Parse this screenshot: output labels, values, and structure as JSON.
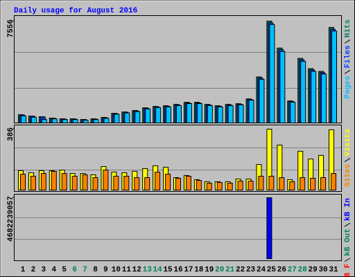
{
  "chart_data": [
    {
      "type": "bar",
      "title": "Daily usage for August 2016",
      "ylim": [
        0,
        7556
      ],
      "yticks": [
        7556
      ],
      "series": [
        {
          "name": "Hits",
          "color": "#00805c",
          "values": [
            612,
            510,
            460,
            357,
            306,
            306,
            255,
            306,
            408,
            714,
            816,
            918,
            1122,
            1224,
            1275,
            1377,
            1530,
            1530,
            1377,
            1275,
            1377,
            1428,
            1785,
            3417,
            7556,
            5559,
            1632,
            4794,
            4029,
            3825,
            7089
          ]
        },
        {
          "name": "Files",
          "color": "#0040ff",
          "values": [
            590,
            490,
            440,
            340,
            290,
            290,
            240,
            290,
            390,
            690,
            790,
            890,
            1090,
            1190,
            1240,
            1340,
            1490,
            1490,
            1340,
            1240,
            1340,
            1390,
            1740,
            3330,
            7420,
            5430,
            1590,
            4680,
            3930,
            3730,
            6950
          ]
        },
        {
          "name": "Pages",
          "color": "#00c0ff",
          "values": [
            520,
            420,
            250,
            300,
            250,
            250,
            200,
            250,
            340,
            640,
            740,
            840,
            1040,
            1140,
            1190,
            1290,
            1440,
            1440,
            1290,
            1190,
            1290,
            1340,
            1690,
            3240,
            7300,
            5300,
            1540,
            4570,
            3830,
            3630,
            6820
          ]
        }
      ]
    },
    {
      "type": "bar",
      "ylim": [
        0,
        386
      ],
      "yticks": [
        386
      ],
      "series": [
        {
          "name": "Visits",
          "color": "#ffff00",
          "values": [
            123,
            110,
            123,
            123,
            127,
            105,
            105,
            97,
            149,
            114,
            110,
            119,
            136,
            154,
            145,
            79,
            92,
            66,
            53,
            53,
            53,
            70,
            70,
            162,
            386,
            285,
            66,
            246,
            197,
            220,
            382
          ]
        },
        {
          "name": "Sites",
          "color": "#ff8000",
          "values": [
            101,
            88,
            105,
            119,
            105,
            88,
            97,
            79,
            127,
            88,
            88,
            79,
            79,
            114,
            101,
            75,
            88,
            61,
            44,
            48,
            44,
            57,
            57,
            88,
            88,
            79,
            53,
            79,
            75,
            79,
            105
          ]
        }
      ]
    },
    {
      "type": "bar",
      "ylim": [
        0,
        4682239057
      ],
      "yticks": [
        4682239057
      ],
      "categories": [
        "1",
        "2",
        "3",
        "4",
        "5",
        "6",
        "7",
        "8",
        "9",
        "10",
        "11",
        "12",
        "13",
        "14",
        "15",
        "16",
        "17",
        "18",
        "19",
        "20",
        "21",
        "22",
        "23",
        "24",
        "25",
        "26",
        "27",
        "28",
        "29",
        "30",
        "31"
      ],
      "category_colors": [
        "#000000",
        "#000000",
        "#000000",
        "#000000",
        "#000000",
        "#00805c",
        "#00805c",
        "#000000",
        "#000000",
        "#000000",
        "#000000",
        "#000000",
        "#00805c",
        "#00805c",
        "#000000",
        "#000000",
        "#000000",
        "#000000",
        "#000000",
        "#00805c",
        "#00805c",
        "#000000",
        "#000000",
        "#000000",
        "#000000",
        "#000000",
        "#00805c",
        "#00805c",
        "#000000",
        "#000000",
        "#000000"
      ],
      "series": [
        {
          "name": "kB In",
          "color": "#0000ff",
          "values": [
            0,
            0,
            0,
            0,
            0,
            0,
            0,
            0,
            0,
            0,
            0,
            0,
            0,
            0,
            0,
            0,
            0,
            0,
            0,
            0,
            0,
            0,
            0,
            0,
            4682239057,
            0,
            0,
            0,
            0,
            0,
            0
          ]
        },
        {
          "name": "kB Out",
          "color": "#00805c",
          "values": [
            0,
            0,
            0,
            0,
            0,
            0,
            0,
            0,
            0,
            0,
            0,
            0,
            0,
            0,
            0,
            0,
            0,
            0,
            0,
            0,
            0,
            0,
            0,
            0,
            0,
            0,
            0,
            0,
            0,
            0,
            0
          ]
        },
        {
          "name": "kB F",
          "color": "#ff0000",
          "values": [
            0,
            0,
            0,
            0,
            0,
            0,
            0,
            0,
            0,
            0,
            0,
            0,
            0,
            0,
            0,
            0,
            0,
            0,
            0,
            0,
            0,
            0,
            0,
            0,
            0,
            0,
            0,
            0,
            0,
            0,
            0
          ]
        }
      ]
    }
  ]
}
